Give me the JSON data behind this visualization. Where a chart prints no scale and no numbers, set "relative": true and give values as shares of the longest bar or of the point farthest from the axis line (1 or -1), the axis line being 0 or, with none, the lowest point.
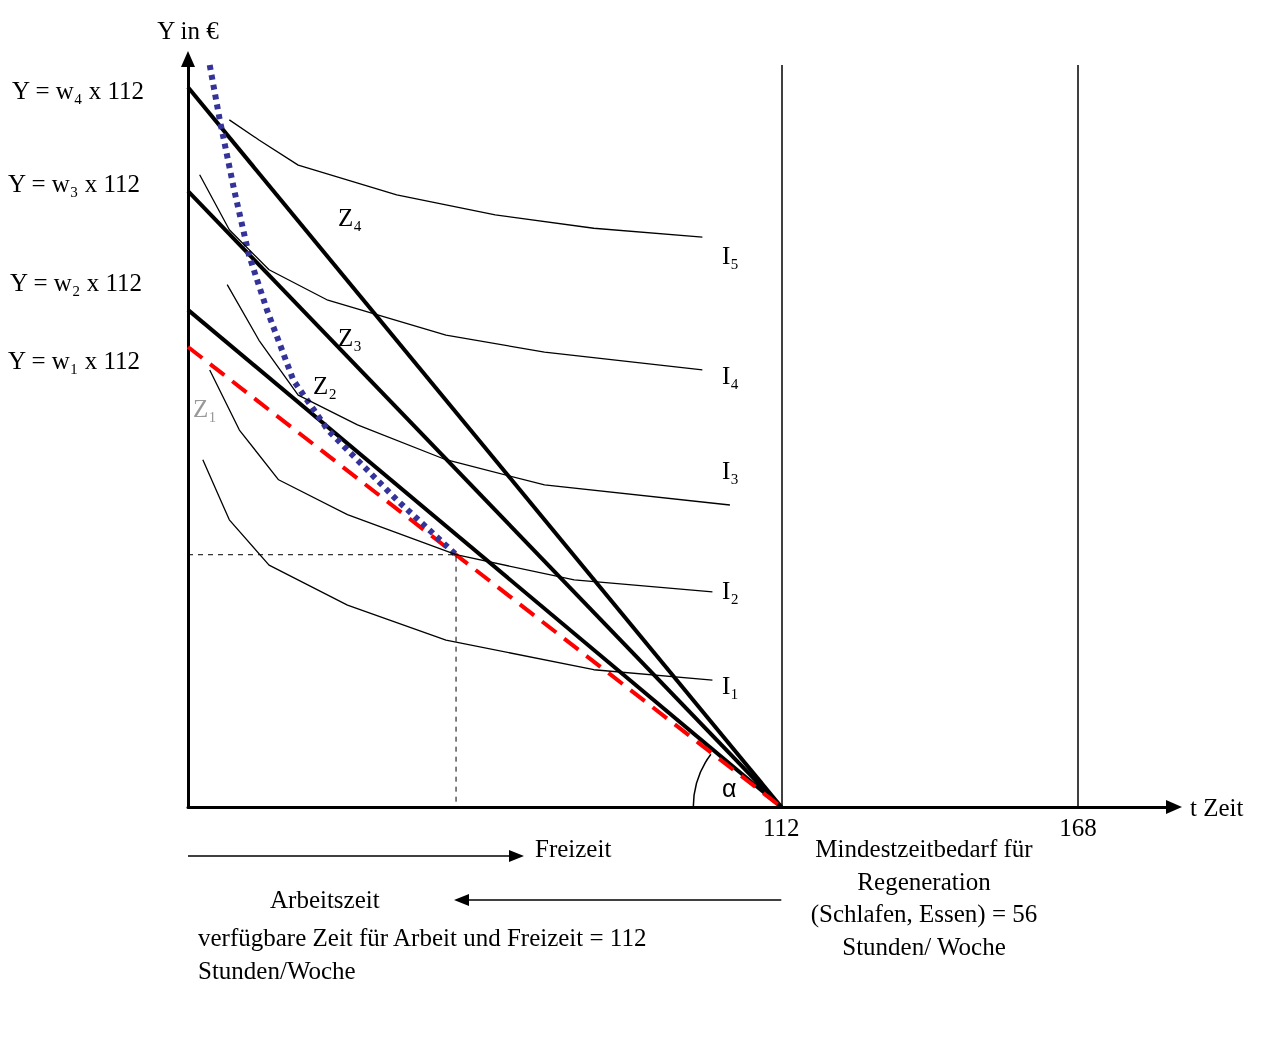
{
  "chart_data": {
    "type": "line",
    "relative": true,
    "ylabel": "Y in €",
    "xlabel": "t Zeit",
    "xlim": [
      0,
      185
    ],
    "xticks": [
      112,
      168
    ],
    "tick_labels": "x",
    "grid": false,
    "marker": "none",
    "series": [
      {
        "color": "#000000",
        "x": [
          0,
          112
        ],
        "values": [
          0.97,
          0
        ]
      },
      {
        "color": "#000000",
        "x": [
          0,
          112
        ],
        "values": [
          0.83,
          0
        ]
      },
      {
        "color": "#000000",
        "x": [
          0,
          112
        ],
        "values": [
          0.67,
          0
        ]
      },
      {
        "color": "#ff0000",
        "line_style": "dashed",
        "x": [
          0,
          112
        ],
        "values": [
          0.62,
          0
        ]
      },
      {
        "color": "#333399",
        "line_style": "dotted",
        "x": [
          4.1,
          6.0,
          8.7,
          11.5,
          14.9,
          19.9,
          26.4,
          39.4,
          50.6
        ],
        "values": [
          1.0,
          0.926,
          0.832,
          0.744,
          0.67,
          0.575,
          0.508,
          0.414,
          0.34
        ]
      },
      {
        "color": "#000000",
        "x": [
          7.8,
          13.4,
          20.8,
          39.4,
          58.0,
          76.6,
          97.1
        ],
        "values": [
          0.926,
          0.899,
          0.865,
          0.825,
          0.798,
          0.78,
          0.768
        ]
      },
      {
        "color": "#000000",
        "x": [
          2.2,
          7.8,
          15.3,
          26.4,
          48.7,
          67.3,
          97.1
        ],
        "values": [
          0.852,
          0.778,
          0.724,
          0.683,
          0.636,
          0.613,
          0.589
        ]
      },
      {
        "color": "#000000",
        "x": [
          7.4,
          13.4,
          20.8,
          32.0,
          48.7,
          67.3,
          102.3
        ],
        "values": [
          0.704,
          0.629,
          0.555,
          0.515,
          0.468,
          0.434,
          0.407
        ]
      },
      {
        "color": "#000000",
        "x": [
          4.1,
          9.7,
          17.1,
          30.1,
          50.6,
          72.9,
          99.0
        ],
        "values": [
          0.589,
          0.508,
          0.441,
          0.394,
          0.34,
          0.306,
          0.29
        ]
      },
      {
        "color": "#000000",
        "x": [
          2.8,
          7.8,
          15.3,
          30.1,
          48.7,
          76.6,
          99.0
        ],
        "values": [
          0.468,
          0.387,
          0.326,
          0.272,
          0.225,
          0.185,
          0.171
        ]
      },
      {
        "color": "#000000",
        "line_style": "dotted",
        "x": [
          0,
          50.6,
          50.6
        ],
        "values": [
          0.34,
          0.34,
          0
        ]
      }
    ],
    "ref_lines": [
      {
        "axis": "x",
        "value": 112,
        "color": "#000000"
      },
      {
        "axis": "x",
        "value": 168,
        "color": "#000000"
      }
    ],
    "annotations": [
      "Y = w₄ x 112",
      "Y = w₃ x 112",
      "Y = w₂ x 112",
      "Y = w₁ x 112",
      "Z₄",
      "Z₃",
      "Z₂",
      "Z₁",
      "I₅",
      "I₄",
      "I₃",
      "I₂",
      "I₁",
      "α",
      "Freizeit",
      "Arbeitszeit",
      "verfügbare Zeit für Arbeit und Freizeit = 112 Stunden/Woche",
      "Mindestzeitbedarf für Regeneration (Schlafen, Essen) = 56 Stunden/ Woche"
    ]
  }
}
